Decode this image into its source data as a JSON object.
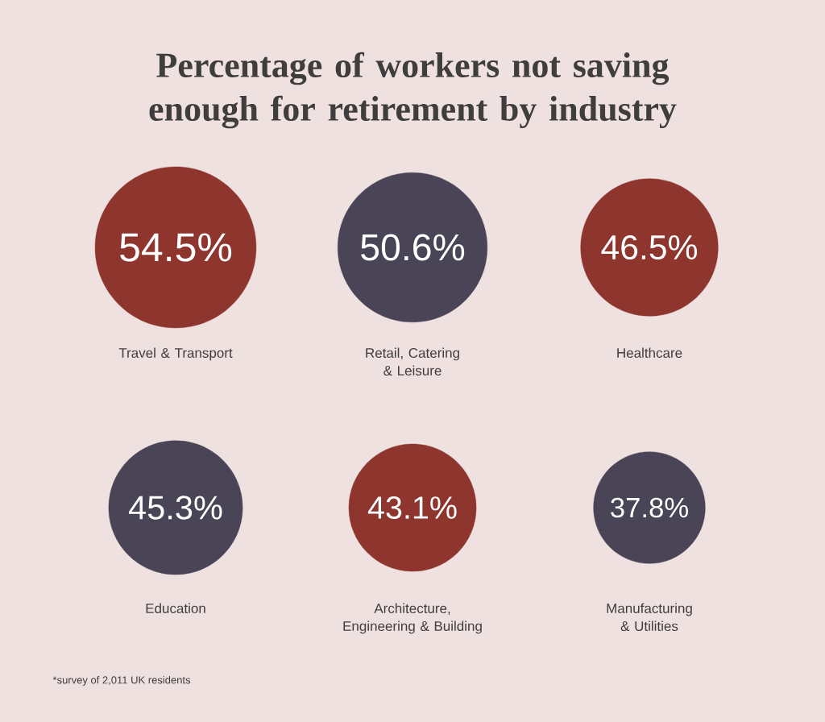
{
  "chart_data": {
    "type": "other",
    "title": "Percentage of workers not saving enough for retirement by industry",
    "categories": [
      "Travel & Transport",
      "Retail, Catering & Leisure",
      "Healthcare",
      "Education",
      "Architecture, Engineering & Building",
      "Manufacturing & Utilities"
    ],
    "values": [
      54.5,
      50.6,
      46.5,
      45.3,
      43.1,
      37.8
    ],
    "value_labels": [
      "54.5%",
      "50.6%",
      "46.5%",
      "45.3%",
      "43.1%",
      "37.8%"
    ],
    "colors": [
      "#8e352e",
      "#4a4556",
      "#8e352e",
      "#4a4556",
      "#8e352e",
      "#4a4556"
    ],
    "annotations": [
      "*survey of 2,011 UK residents"
    ]
  }
}
